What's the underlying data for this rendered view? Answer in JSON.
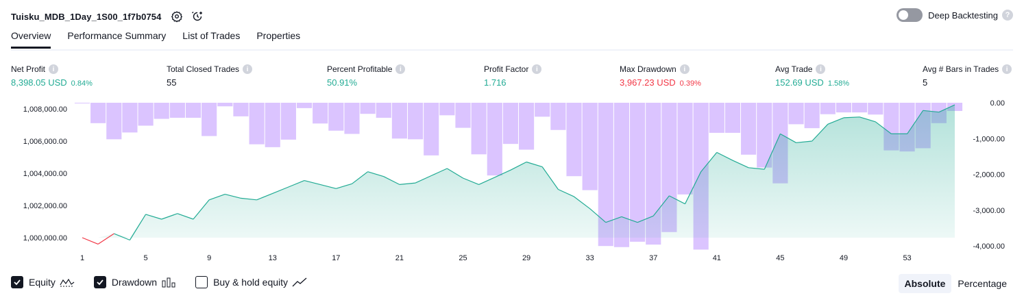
{
  "header": {
    "title": "Tuisku_MDB_1Day_1S00_1f7b0754",
    "deep_backtesting_label": "Deep Backtesting",
    "help_glyph": "?"
  },
  "tabs": [
    {
      "label": "Overview"
    },
    {
      "label": "Performance Summary"
    },
    {
      "label": "List of Trades"
    },
    {
      "label": "Properties"
    }
  ],
  "metrics": {
    "info_glyph": "i",
    "net_profit": {
      "label": "Net Profit",
      "value": "8,398.05 USD",
      "pct": "0.84%"
    },
    "total_closed_trades": {
      "label": "Total Closed Trades",
      "value": "55"
    },
    "percent_profitable": {
      "label": "Percent Profitable",
      "value": "50.91%"
    },
    "profit_factor": {
      "label": "Profit Factor",
      "value": "1.716"
    },
    "max_drawdown": {
      "label": "Max Drawdown",
      "value": "3,967.23 USD",
      "pct": "0.39%"
    },
    "avg_trade": {
      "label": "Avg Trade",
      "value": "152.69 USD",
      "pct": "1.58%"
    },
    "avg_bars": {
      "label": "Avg # Bars in Trades",
      "value": "5"
    }
  },
  "chart_data": {
    "type": "line",
    "x_ticks": [
      "1",
      "5",
      "9",
      "13",
      "17",
      "21",
      "25",
      "29",
      "33",
      "37",
      "41",
      "45",
      "49",
      "53"
    ],
    "y_left_ticks": [
      "1,008,000.00",
      "1,006,000.00",
      "1,004,000.00",
      "1,002,000.00",
      "1,000,000.00"
    ],
    "y_right_ticks": [
      "0.00",
      "-1,000.00",
      "-2,000.00",
      "-3,000.00",
      "-4,000.00"
    ],
    "ylim_left": [
      999500,
      1008300
    ],
    "ylim_right": [
      -4200,
      0
    ],
    "series": [
      {
        "name": "Equity",
        "x": [
          1,
          2,
          3,
          4,
          5,
          6,
          7,
          8,
          9,
          10,
          11,
          12,
          13,
          14,
          15,
          16,
          17,
          18,
          19,
          20,
          21,
          22,
          23,
          24,
          25,
          26,
          27,
          28,
          29,
          30,
          31,
          32,
          33,
          34,
          35,
          36,
          37,
          38,
          39,
          40,
          41,
          42,
          43,
          44,
          45,
          46,
          47,
          48,
          49,
          50,
          51,
          52,
          53,
          54,
          55,
          56
        ],
        "values": [
          1000000,
          999600,
          1000250,
          999850,
          1001450,
          1001150,
          1001500,
          1001150,
          1002350,
          1002700,
          1002450,
          1002350,
          1002750,
          1003150,
          1003550,
          1003300,
          1003050,
          1003350,
          1004100,
          1003800,
          1003300,
          1003400,
          1003850,
          1004300,
          1003700,
          1003300,
          1003750,
          1004200,
          1004700,
          1004400,
          1003000,
          1002550,
          1001800,
          1000950,
          1001300,
          1000950,
          1001350,
          1002600,
          1002100,
          1004100,
          1005300,
          1004800,
          1004350,
          1004250,
          1006450,
          1005900,
          1006000,
          1007050,
          1007450,
          1007500,
          1007200,
          1006450,
          1006450,
          1007900,
          1007800,
          1008250
        ]
      },
      {
        "name": "Drawdown",
        "x": [
          1,
          2,
          3,
          4,
          5,
          6,
          7,
          8,
          9,
          10,
          11,
          12,
          13,
          14,
          15,
          16,
          17,
          18,
          19,
          20,
          21,
          22,
          23,
          24,
          25,
          26,
          27,
          28,
          29,
          30,
          31,
          32,
          33,
          34,
          35,
          36,
          37,
          38,
          39,
          40,
          41,
          42,
          43,
          44,
          45,
          46,
          47,
          48,
          49,
          50,
          51,
          52,
          53,
          54,
          55,
          56
        ],
        "values": [
          0,
          -570,
          -1020,
          -830,
          -640,
          -450,
          -420,
          -420,
          -930,
          -100,
          -380,
          -1160,
          -1240,
          -1030,
          -150,
          -580,
          -780,
          -870,
          -310,
          -420,
          -1000,
          -1020,
          -1470,
          -350,
          -700,
          -1440,
          -2030,
          -1150,
          -1310,
          -390,
          -760,
          -2050,
          -2440,
          -4000,
          -4030,
          -3880,
          -3960,
          -3610,
          -2560,
          -4100,
          -840,
          -840,
          -1450,
          -1810,
          -2250,
          -600,
          -710,
          -320,
          -270,
          -270,
          -330,
          -1330,
          -1360,
          -1270,
          -570,
          -230
        ]
      }
    ]
  },
  "legend": {
    "equity_label": "Equity",
    "drawdown_label": "Drawdown",
    "buyhold_label": "Buy & hold equity"
  },
  "modes": {
    "absolute_label": "Absolute",
    "percentage_label": "Percentage"
  },
  "colors": {
    "profit": "#22ab94",
    "loss": "#f23645",
    "drawdown": "#d1b3ff",
    "equity_fill": "#22ab94"
  }
}
